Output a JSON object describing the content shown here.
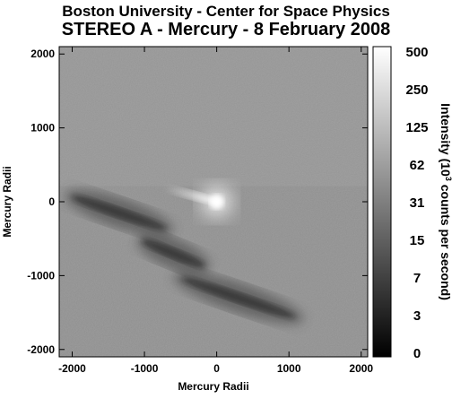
{
  "header": {
    "title": "Boston University - Center for Space Physics",
    "subtitle": "STEREO A - Mercury - 8 February 2008"
  },
  "chart_data": {
    "type": "heatmap",
    "title": "Boston University - Center for Space Physics",
    "subtitle": "STEREO A - Mercury - 8 February 2008",
    "xlabel": "Mercury Radii",
    "ylabel": "Mercury Radii",
    "x_ticks": [
      -2000,
      -1000,
      0,
      1000,
      2000
    ],
    "y_ticks": [
      -2000,
      -1000,
      0,
      1000,
      2000
    ],
    "x_tick_labels": [
      "-2000",
      "-1000",
      "0",
      "1000",
      "2000"
    ],
    "y_tick_labels": [
      "-2000",
      "-1000",
      "0",
      "1000",
      "2000"
    ],
    "xlim": [
      -2180,
      2090
    ],
    "ylim": [
      -2100,
      2100
    ],
    "grid": false,
    "colorbar": {
      "label": "Intensity (10³ counts per second)",
      "label_main": "Intensity (10",
      "label_sup": "3",
      "label_tail": " counts per second)",
      "tick_values": [
        500,
        250,
        125,
        62,
        31,
        15,
        7,
        3,
        0
      ],
      "tick_labels": [
        "500",
        "250",
        "125",
        "62",
        "31",
        "15",
        "7",
        "3",
        "0"
      ],
      "scale": "log",
      "colormap": "grayscale",
      "colors": [
        "#000000",
        "#ffffff"
      ]
    },
    "features": {
      "bright_source": {
        "x": 0,
        "y": 0
      },
      "tail_direction": "toward upper-left",
      "dark_bands": [
        {
          "x": [
            -2100,
            -600
          ],
          "y": [
            100,
            -400
          ]
        },
        {
          "x": [
            -1100,
            -100
          ],
          "y": [
            -500,
            -900
          ]
        },
        {
          "x": [
            -600,
            1200
          ],
          "y": [
            -1000,
            -1600
          ]
        }
      ]
    }
  }
}
